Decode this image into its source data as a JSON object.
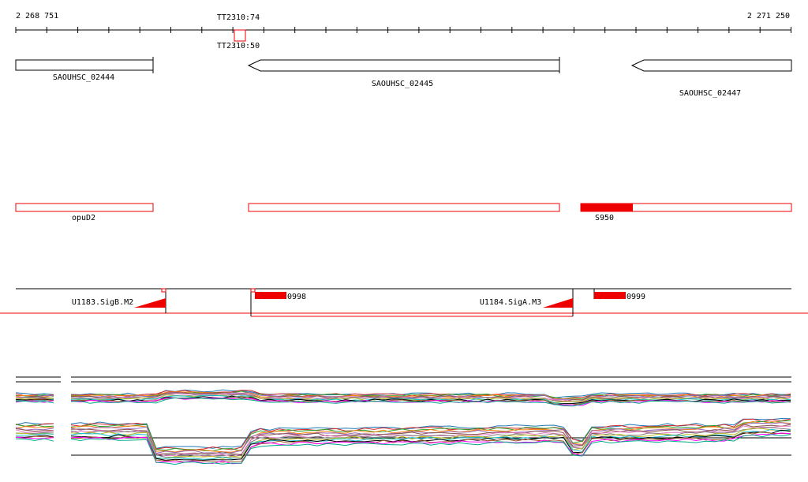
{
  "ruler": {
    "start": "2 268 751",
    "end": "2 271 250",
    "marker": "TT2310:74",
    "marker_below": "TT2310:50"
  },
  "genes": [
    "SAOUHSC_02444",
    "SAOUHSC_02445",
    "SAOUHSC_02447"
  ],
  "features": [
    "opuD2",
    "S950"
  ],
  "promoters": [
    "U1183.SigB.M2",
    "0998",
    "U1184.SigA.M3",
    "0999"
  ]
}
